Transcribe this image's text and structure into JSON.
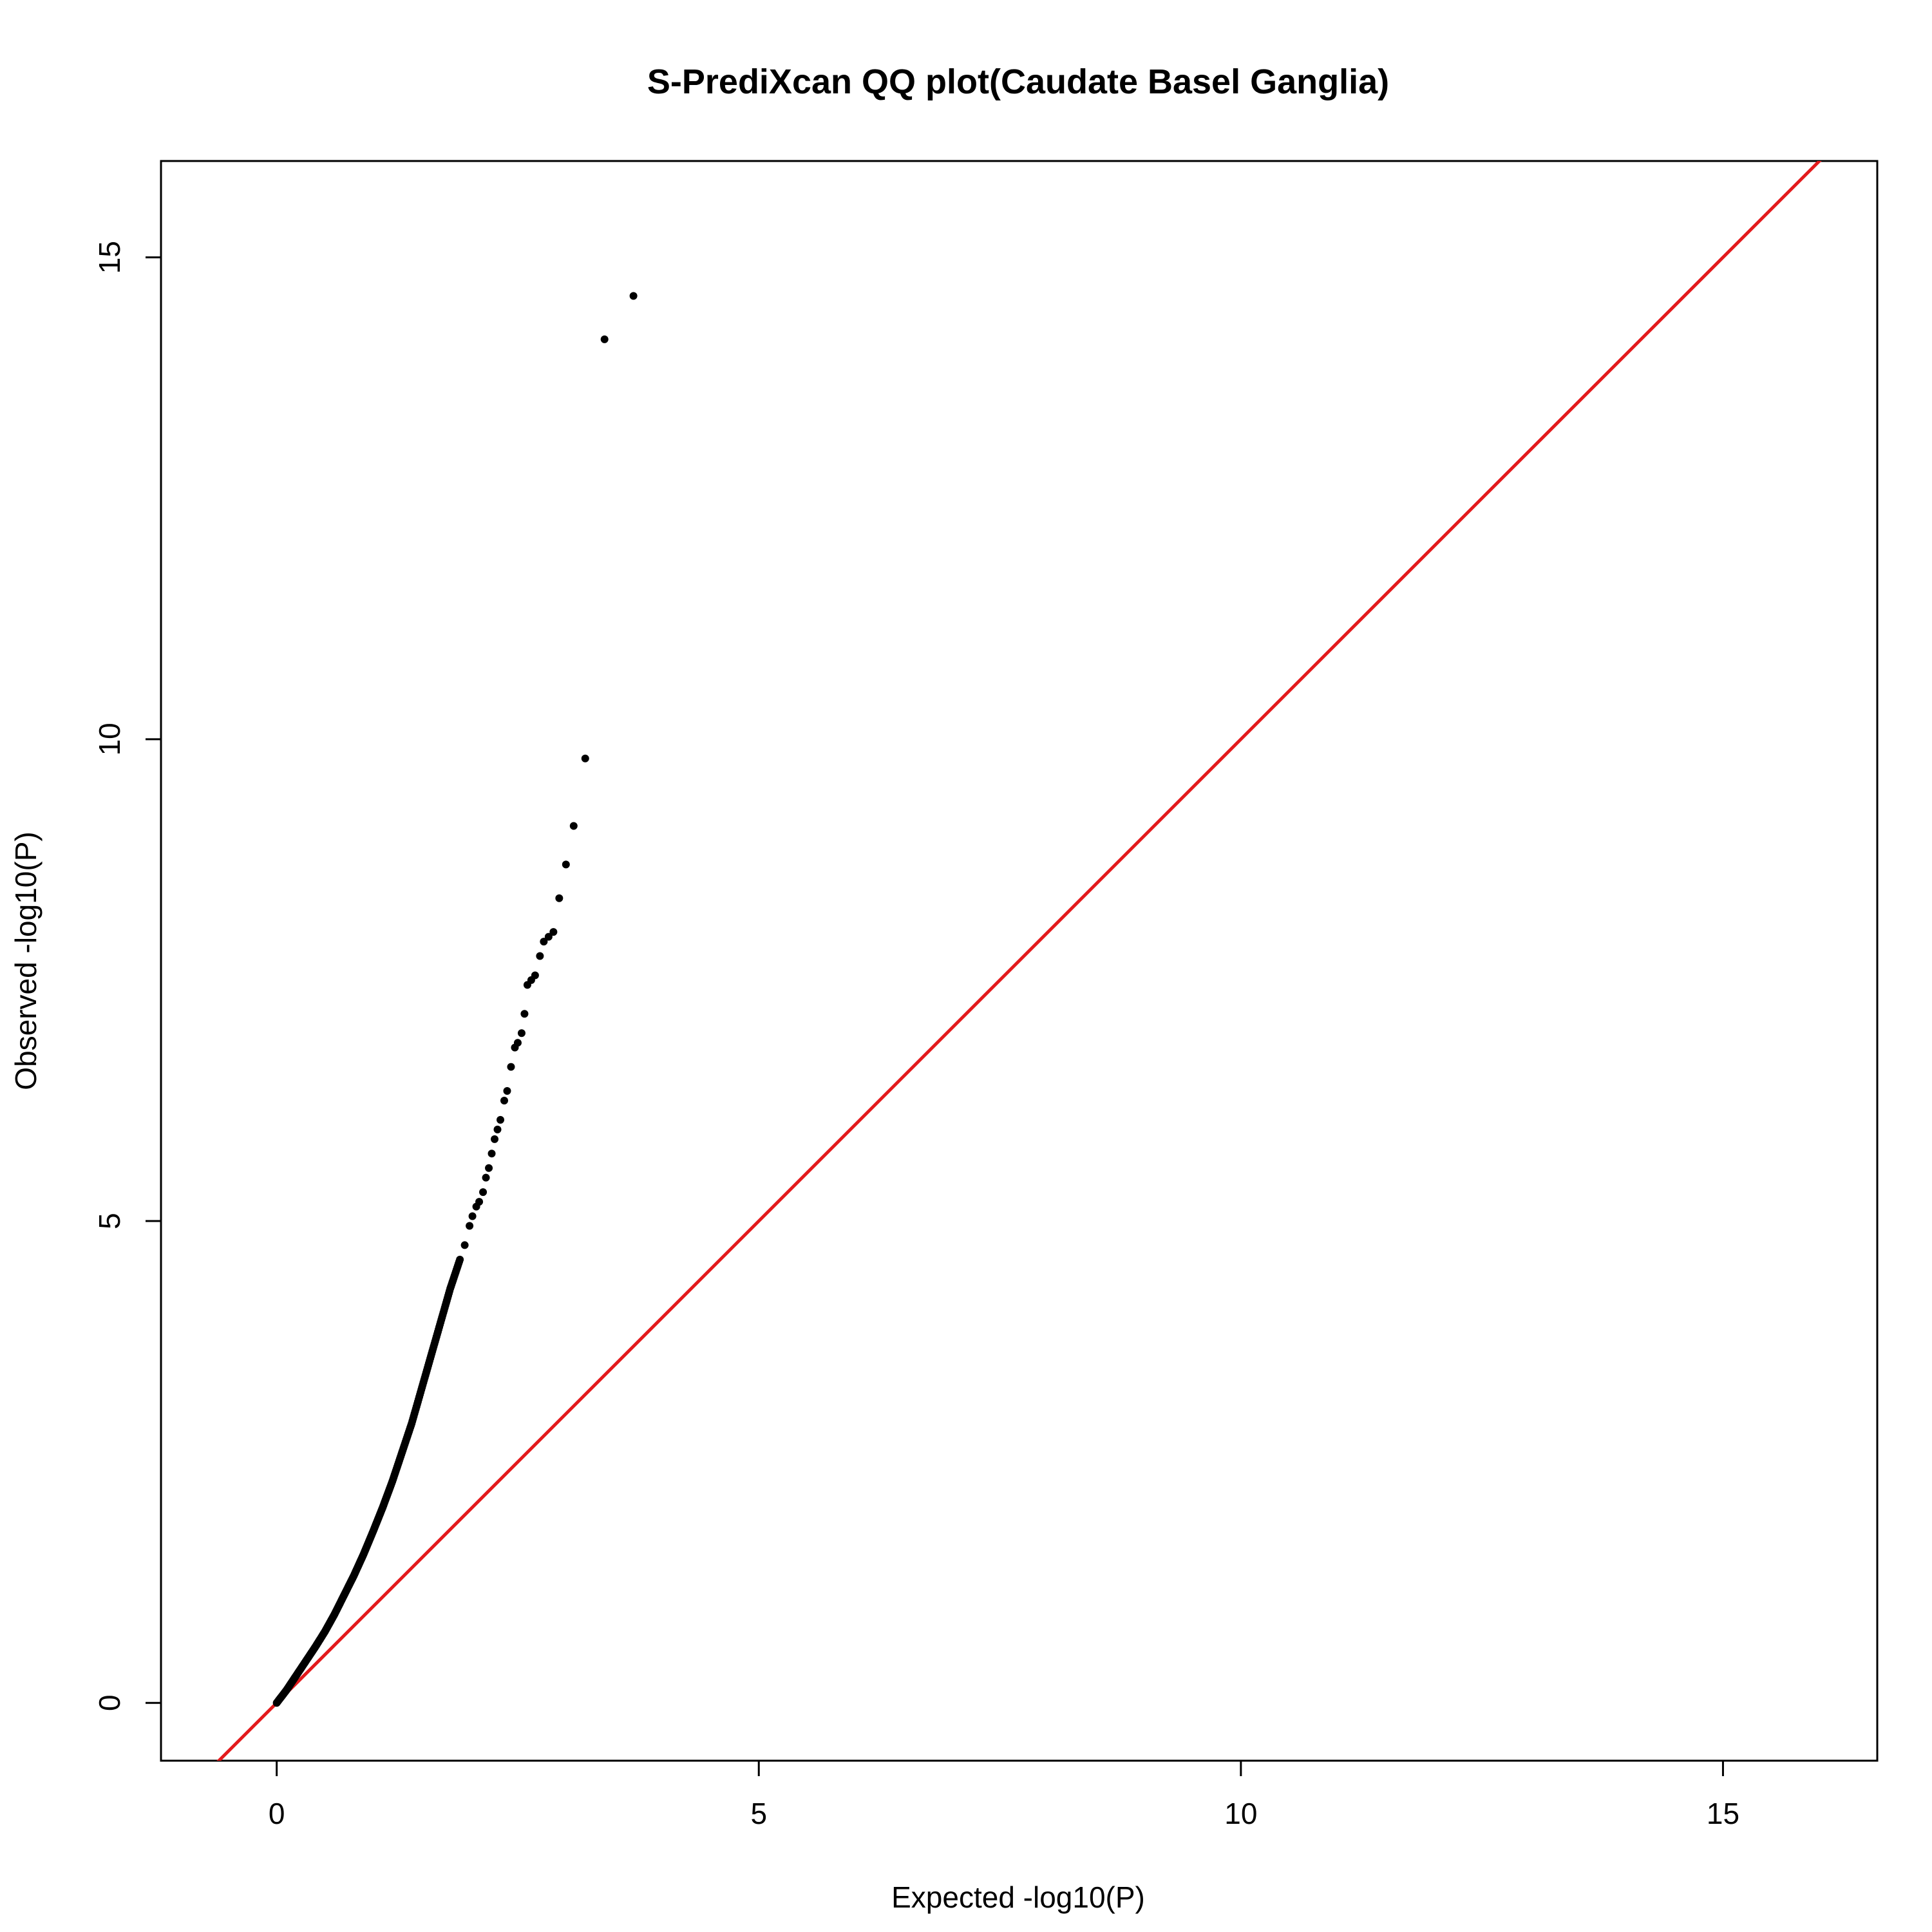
{
  "chart_data": {
    "type": "scatter",
    "title": "S-PrediXcan QQ plot(Caudate Basel Ganglia)",
    "xlabel": "Expected -log10(P)",
    "ylabel": "Observed -log10(P)",
    "xlim": [
      -1.2,
      16.6
    ],
    "ylim": [
      -0.6,
      16.0
    ],
    "x_ticks": [
      0,
      5,
      10,
      15
    ],
    "y_ticks": [
      0,
      5,
      10,
      15
    ],
    "grid": false,
    "legend": "none",
    "point_color": "#000000",
    "reference_line": {
      "slope": 1,
      "intercept": 0,
      "color": "#e31a1c"
    },
    "bulk_curve": [
      [
        0.0,
        0.0
      ],
      [
        0.1,
        0.13
      ],
      [
        0.2,
        0.28
      ],
      [
        0.3,
        0.43
      ],
      [
        0.4,
        0.58
      ],
      [
        0.5,
        0.74
      ],
      [
        0.6,
        0.92
      ],
      [
        0.7,
        1.12
      ],
      [
        0.8,
        1.32
      ],
      [
        0.9,
        1.54
      ],
      [
        1.0,
        1.78
      ],
      [
        1.1,
        2.03
      ],
      [
        1.2,
        2.3
      ],
      [
        1.3,
        2.6
      ],
      [
        1.4,
        2.9
      ],
      [
        1.5,
        3.25
      ],
      [
        1.6,
        3.6
      ],
      [
        1.7,
        3.95
      ],
      [
        1.8,
        4.3
      ],
      [
        1.9,
        4.6
      ]
    ],
    "tail_points": [
      {
        "x": 1.95,
        "y": 4.75
      },
      {
        "x": 2.0,
        "y": 4.95
      },
      {
        "x": 2.03,
        "y": 5.05
      },
      {
        "x": 2.07,
        "y": 5.15
      },
      {
        "x": 2.1,
        "y": 5.2
      },
      {
        "x": 2.14,
        "y": 5.3
      },
      {
        "x": 2.17,
        "y": 5.45
      },
      {
        "x": 2.2,
        "y": 5.55
      },
      {
        "x": 2.23,
        "y": 5.7
      },
      {
        "x": 2.26,
        "y": 5.85
      },
      {
        "x": 2.29,
        "y": 5.95
      },
      {
        "x": 2.32,
        "y": 6.05
      },
      {
        "x": 2.36,
        "y": 6.25
      },
      {
        "x": 2.39,
        "y": 6.35
      },
      {
        "x": 2.43,
        "y": 6.6
      },
      {
        "x": 2.47,
        "y": 6.8
      },
      {
        "x": 2.5,
        "y": 6.85
      },
      {
        "x": 2.54,
        "y": 6.95
      },
      {
        "x": 2.57,
        "y": 7.15
      },
      {
        "x": 2.6,
        "y": 7.45
      },
      {
        "x": 2.64,
        "y": 7.5
      },
      {
        "x": 2.68,
        "y": 7.55
      },
      {
        "x": 2.73,
        "y": 7.75
      },
      {
        "x": 2.77,
        "y": 7.9
      },
      {
        "x": 2.82,
        "y": 7.95
      },
      {
        "x": 2.87,
        "y": 8.0
      },
      {
        "x": 2.93,
        "y": 8.35
      },
      {
        "x": 3.0,
        "y": 8.7
      },
      {
        "x": 3.08,
        "y": 9.1
      },
      {
        "x": 3.2,
        "y": 9.8
      },
      {
        "x": 3.4,
        "y": 14.15
      },
      {
        "x": 3.7,
        "y": 14.6
      }
    ]
  }
}
